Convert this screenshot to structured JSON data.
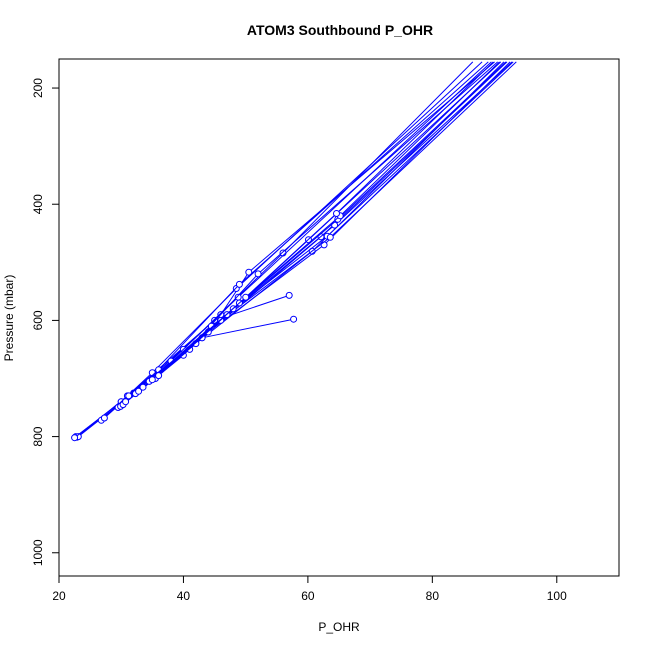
{
  "chart_data": {
    "type": "line",
    "title": "ATOM3 Southbound P_OHR",
    "xlabel": "P_OHR",
    "ylabel": "Pressure (mbar)",
    "xlim": [
      20,
      110
    ],
    "ylim": [
      1040,
      150
    ],
    "y_reversed": true,
    "grid": false,
    "legend": "none",
    "line_color": "#0000ff",
    "x_ticks": [
      20,
      40,
      60,
      80,
      100
    ],
    "y_ticks": [
      200,
      400,
      600,
      800,
      1000
    ],
    "x_tick_labels": [
      "20",
      "40",
      "60",
      "80",
      "100"
    ],
    "y_tick_labels": [
      "200",
      "400",
      "600",
      "800",
      "1000"
    ],
    "series": [
      {
        "x": [
          22.7,
          30,
          43,
          57.7
        ],
        "y": [
          800,
          740,
          630,
          598
        ]
      },
      {
        "x": [
          22.9,
          31,
          45,
          57
        ],
        "y": [
          801,
          730,
          600,
          557
        ]
      },
      {
        "x": [
          23.1,
          32,
          46,
          50.5,
          90
        ],
        "y": [
          800,
          725,
          590,
          517,
          155
        ]
      },
      {
        "x": [
          22.5,
          30,
          40,
          56,
          86.5
        ],
        "y": [
          802,
          740,
          650,
          484,
          155
        ]
      },
      {
        "x": [
          26.8,
          35,
          48.5,
          88
        ],
        "y": [
          772,
          690,
          545,
          155
        ]
      },
      {
        "x": [
          27.3,
          36,
          49,
          89
        ],
        "y": [
          768,
          685,
          538,
          155
        ]
      },
      {
        "x": [
          29.5,
          38,
          48.8,
          89.5
        ],
        "y": [
          750,
          670,
          560,
          155
        ]
      },
      {
        "x": [
          29.9,
          40,
          52,
          90.5
        ],
        "y": [
          748,
          660,
          520,
          155
        ]
      },
      {
        "x": [
          30.3,
          41,
          60.1,
          91
        ],
        "y": [
          745,
          650,
          461,
          155
        ]
      },
      {
        "x": [
          30.7,
          42,
          60.7,
          91.5
        ],
        "y": [
          740,
          640,
          481,
          155
        ]
      },
      {
        "x": [
          31.2,
          43,
          62.1,
          92
        ],
        "y": [
          730,
          630,
          456,
          155
        ]
      },
      {
        "x": [
          32.3,
          44,
          62.6,
          92.5
        ],
        "y": [
          726,
          620,
          470,
          155
        ]
      },
      {
        "x": [
          32.8,
          44.5,
          63.1,
          93
        ],
        "y": [
          722,
          610,
          455,
          155
        ]
      },
      {
        "x": [
          35.5,
          46,
          63.6,
          93.5
        ],
        "y": [
          700,
          600,
          457,
          155
        ]
      },
      {
        "x": [
          33.5,
          47,
          64.3,
          92.8
        ],
        "y": [
          715,
          590,
          436,
          155
        ]
      },
      {
        "x": [
          34.5,
          48,
          64.8,
          91.8
        ],
        "y": [
          705,
          580,
          426,
          155
        ]
      },
      {
        "x": [
          35,
          49,
          65.2,
          90.8
        ],
        "y": [
          702,
          570,
          420,
          155
        ]
      },
      {
        "x": [
          36,
          50,
          64.6,
          89.8
        ],
        "y": [
          695,
          560,
          416,
          155
        ]
      }
    ]
  }
}
